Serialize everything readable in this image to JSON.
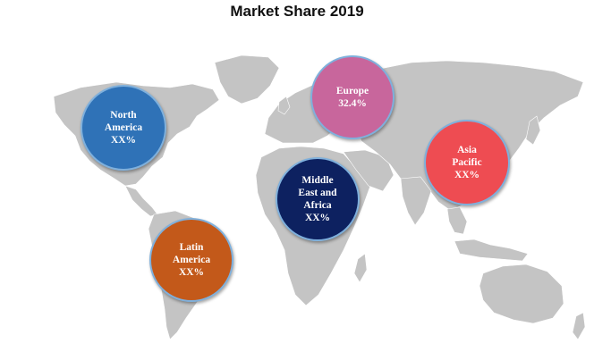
{
  "title": "Market Share 2019",
  "regions": {
    "north_america": {
      "lines": [
        "North",
        "America"
      ],
      "value": "XX%",
      "color": "#2f72b7"
    },
    "europe": {
      "lines": [
        "Europe"
      ],
      "value": "32.4%",
      "color": "#c8669c"
    },
    "asia_pacific": {
      "lines": [
        "Asia",
        "Pacific"
      ],
      "value": "XX%",
      "color": "#ee4c52"
    },
    "middle_east_africa": {
      "lines": [
        "Middle",
        "East and",
        "Africa"
      ],
      "value": "XX%",
      "color": "#0d2160"
    },
    "latin_america": {
      "lines": [
        "Latin",
        "America"
      ],
      "value": "XX%",
      "color": "#c3591a"
    }
  },
  "map_color": "#c4c4c4"
}
